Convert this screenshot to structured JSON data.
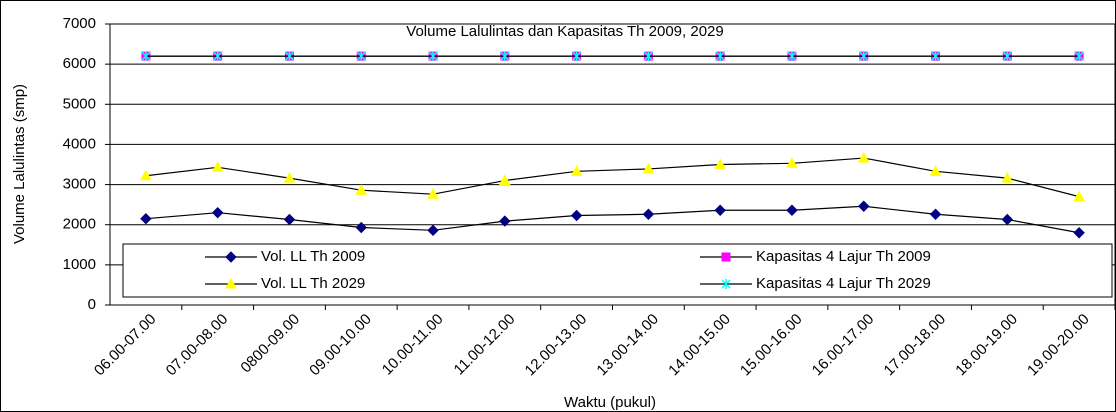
{
  "chart_data": {
    "type": "line",
    "title": "Volume Lalulintas dan Kapasitas Th 2009, 2029",
    "x_label": "Waktu (pukul)",
    "y_label": "Volume Lalulintas (smp)",
    "categories": [
      "06.00-07.00",
      "07.00-08.00",
      "0800-09.00",
      "09.00-10.00",
      "10.00-11.00",
      "11.00-12.00",
      "12.00-13.00",
      "13.00-14.00",
      "14.00-15.00",
      "15.00-16.00",
      "16.00-17.00",
      "17.00-18.00",
      "18.00-19.00",
      "19.00-20.00"
    ],
    "series": [
      {
        "name": "Vol. LL Th 2009",
        "color": "#000080",
        "marker": "diamond",
        "values": [
          2150,
          2300,
          2130,
          1930,
          1860,
          2090,
          2230,
          2260,
          2360,
          2360,
          2460,
          2260,
          2130,
          1800
        ]
      },
      {
        "name": "Kapasitas 4 Lajur Th 2009",
        "color": "#ff00ff",
        "marker": "square",
        "values": [
          6200,
          6200,
          6200,
          6200,
          6200,
          6200,
          6200,
          6200,
          6200,
          6200,
          6200,
          6200,
          6200,
          6200
        ]
      },
      {
        "name": "Vol. LL Th 2029",
        "color": "#ffff00",
        "marker": "triangle",
        "values": [
          3220,
          3430,
          3160,
          2860,
          2760,
          3100,
          3330,
          3390,
          3500,
          3530,
          3660,
          3330,
          3160,
          2700
        ]
      },
      {
        "name": "Kapasitas 4 Lajur Th 2029",
        "color": "#00ffff",
        "marker": "asterisk",
        "values": [
          6200,
          6200,
          6200,
          6200,
          6200,
          6200,
          6200,
          6200,
          6200,
          6200,
          6200,
          6200,
          6200,
          6200
        ]
      }
    ],
    "line_color": "#000000",
    "ylim": [
      0,
      7000
    ],
    "yticks": [
      0,
      1000,
      2000,
      3000,
      4000,
      5000,
      6000,
      7000
    ],
    "grid": true
  }
}
